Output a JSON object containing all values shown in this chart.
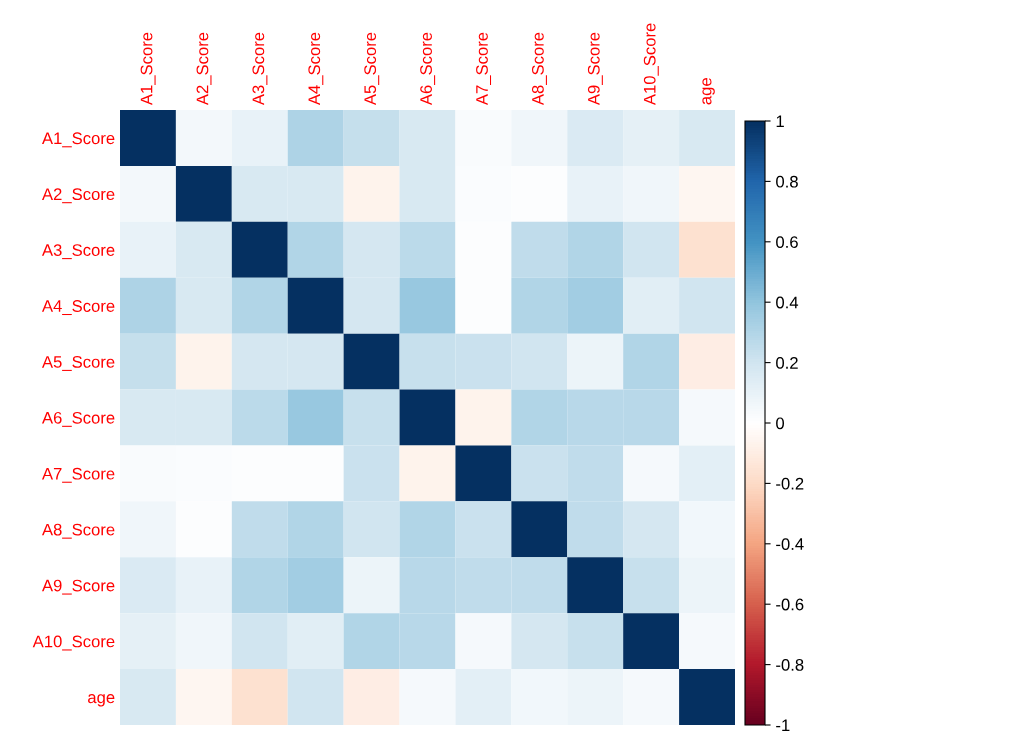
{
  "chart_data": {
    "type": "heatmap",
    "categories": [
      "A1_Score",
      "A2_Score",
      "A3_Score",
      "A4_Score",
      "A5_Score",
      "A6_Score",
      "A7_Score",
      "A8_Score",
      "A9_Score",
      "A10_Score",
      "age"
    ],
    "y_categories": [
      "A1_Score",
      "A2_Score",
      "A3_Score",
      "A4_Score",
      "A5_Score",
      "A6_Score",
      "A7_Score",
      "A8_Score",
      "A9_Score",
      "A10_Score",
      "age"
    ],
    "cells": [
      [
        1,
        0.05,
        0.1,
        0.31,
        0.24,
        0.17,
        0.03,
        0.07,
        0.16,
        0.11,
        0.17
      ],
      [
        0.05,
        1,
        0.17,
        0.17,
        -0.07,
        0.17,
        0.02,
        0.01,
        0.1,
        0.07,
        -0.05
      ],
      [
        0.1,
        0.17,
        1,
        0.3,
        0.18,
        0.27,
        0.01,
        0.25,
        0.3,
        0.2,
        -0.17
      ],
      [
        0.31,
        0.17,
        0.3,
        1,
        0.18,
        0.38,
        0.01,
        0.3,
        0.35,
        0.13,
        0.2
      ],
      [
        0.24,
        -0.07,
        0.18,
        0.18,
        1,
        0.23,
        0.22,
        0.2,
        0.08,
        0.3,
        -0.1
      ],
      [
        0.17,
        0.17,
        0.27,
        0.38,
        0.23,
        1,
        -0.07,
        0.3,
        0.28,
        0.28,
        0.04
      ],
      [
        0.03,
        0.02,
        0.01,
        0.01,
        0.22,
        -0.07,
        1,
        0.22,
        0.25,
        0.04,
        0.12
      ],
      [
        0.07,
        0.01,
        0.25,
        0.3,
        0.2,
        0.3,
        0.22,
        1,
        0.25,
        0.18,
        0.06
      ],
      [
        0.16,
        0.1,
        0.3,
        0.35,
        0.08,
        0.28,
        0.25,
        0.25,
        1,
        0.23,
        0.08
      ],
      [
        0.11,
        0.07,
        0.2,
        0.13,
        0.3,
        0.28,
        0.04,
        0.18,
        0.23,
        1,
        0.04
      ],
      [
        0.17,
        -0.05,
        -0.17,
        0.2,
        -0.1,
        0.04,
        0.12,
        0.06,
        0.08,
        0.04,
        1
      ]
    ],
    "clim": [
      -1,
      1
    ],
    "cticks": [
      -1,
      -0.8,
      -0.6,
      -0.4,
      -0.2,
      0,
      0.2,
      0.4,
      0.6,
      0.8,
      1
    ]
  }
}
